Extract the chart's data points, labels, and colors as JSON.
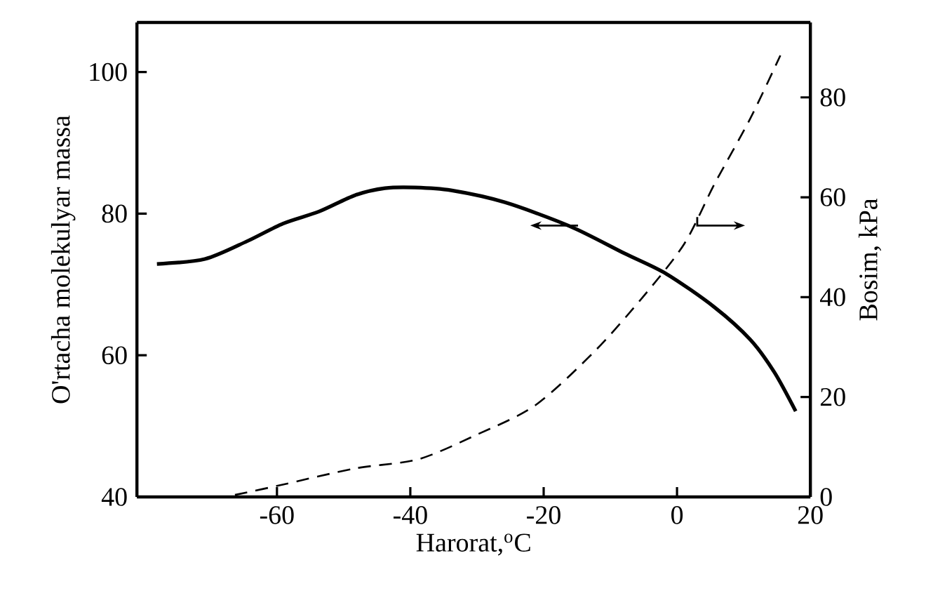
{
  "chart_data": {
    "type": "line",
    "xlabel": "Harorat,$^{o}$C",
    "ylabel": "O'rtacha molekulyar massa",
    "y2label": "Bosim, kPa",
    "xlim": [
      -81,
      20
    ],
    "xticks": [
      -60,
      -40,
      -20,
      0,
      20
    ],
    "ylim": [
      40,
      107
    ],
    "yticks": [
      40,
      60,
      80,
      100
    ],
    "y2lim": [
      0,
      95
    ],
    "y2ticks": [
      0,
      20,
      40,
      60,
      80
    ],
    "grid": false,
    "legend": false,
    "series": [
      {
        "color": "#000000",
        "line_style": "solid",
        "x": [
          -78,
          -70.8,
          -64.5,
          -59.1,
          -53.7,
          -48.3,
          -43.8,
          -39.3,
          -33.9,
          -25.8,
          -16,
          -7.9,
          -1.6,
          5.6,
          11,
          14.6,
          17.8
        ],
        "values": [
          72.9,
          73.6,
          76.1,
          78.6,
          80.3,
          82.6,
          83.6,
          83.7,
          83.3,
          81.6,
          78.2,
          74.4,
          71.5,
          66.8,
          62.2,
          57.6,
          52.1
        ]
      },
      {
        "color": "#000000",
        "line_style": "dashed",
        "axis": "y2",
        "x": [
          -66.3,
          -60,
          -48.3,
          -38.9,
          -30.3,
          -21.3,
          -12.4,
          -5.2,
          1.1,
          5.6,
          11,
          15.5
        ],
        "values": [
          0.4,
          2.2,
          5.7,
          7.5,
          12.3,
          18.3,
          29.1,
          39.9,
          50.7,
          62.6,
          75.8,
          88.4
        ]
      }
    ]
  }
}
